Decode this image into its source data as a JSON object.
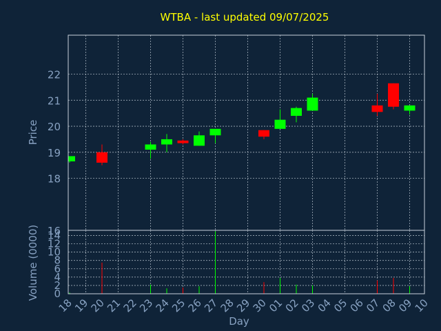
{
  "chart_data": {
    "type": "candlestick",
    "title": "WTBA - last updated 09/07/2025",
    "xlabel": "Day",
    "price_ylabel": "Price",
    "volume_ylabel": "Volume (0000)",
    "price_ylim": [
      16,
      23.5
    ],
    "price_ticks": [
      16,
      18,
      19,
      20,
      21,
      22
    ],
    "volume_ylim": [
      0,
      15
    ],
    "volume_ticks": [
      0,
      2,
      4,
      6,
      8,
      10,
      12,
      14
    ],
    "grid": true,
    "colors": {
      "up": "#00ff00",
      "down": "#ff0000",
      "background": "#0f2338",
      "title": "#ffff00",
      "axis": "#88a2c2"
    },
    "x_tick_labels": [
      "18",
      "19",
      "20",
      "21",
      "22",
      "23",
      "24",
      "25",
      "26",
      "27",
      "28",
      "29",
      "30",
      "01",
      "02",
      "03",
      "04",
      "05",
      "06",
      "07",
      "08",
      "09",
      "10"
    ],
    "candles": [
      {
        "day": "18",
        "open": 18.65,
        "high": 18.85,
        "low": 18.6,
        "close": 18.85,
        "volume": 0.3
      },
      {
        "day": "20",
        "open": 19.0,
        "high": 19.3,
        "low": 18.5,
        "close": 18.6,
        "volume": 7.5
      },
      {
        "day": "23",
        "open": 19.1,
        "high": 19.4,
        "low": 18.75,
        "close": 19.3,
        "volume": 2.2
      },
      {
        "day": "24",
        "open": 19.3,
        "high": 19.7,
        "low": 19.0,
        "close": 19.5,
        "volume": 1.3
      },
      {
        "day": "25",
        "open": 19.45,
        "high": 19.5,
        "low": 19.3,
        "close": 19.35,
        "volume": 1.5
      },
      {
        "day": "26",
        "open": 19.25,
        "high": 19.8,
        "low": 19.25,
        "close": 19.65,
        "volume": 1.8
      },
      {
        "day": "27",
        "open": 19.65,
        "high": 19.9,
        "low": 19.35,
        "close": 19.9,
        "volume": 15.0
      },
      {
        "day": "30",
        "open": 19.85,
        "high": 19.85,
        "low": 19.5,
        "close": 19.6,
        "volume": 2.8
      },
      {
        "day": "01",
        "open": 19.9,
        "high": 20.65,
        "low": 19.9,
        "close": 20.25,
        "volume": 3.8
      },
      {
        "day": "02",
        "open": 20.4,
        "high": 20.75,
        "low": 20.15,
        "close": 20.7,
        "volume": 2.2
      },
      {
        "day": "03",
        "open": 20.6,
        "high": 21.25,
        "low": 20.6,
        "close": 21.1,
        "volume": 2.0
      },
      {
        "day": "07",
        "open": 20.8,
        "high": 21.25,
        "low": 20.4,
        "close": 20.55,
        "volume": 3.2
      },
      {
        "day": "08",
        "open": 21.65,
        "high": 21.65,
        "low": 20.65,
        "close": 20.75,
        "volume": 3.8
      },
      {
        "day": "09",
        "open": 20.6,
        "high": 20.8,
        "low": 20.45,
        "close": 20.8,
        "volume": 1.8
      }
    ]
  }
}
